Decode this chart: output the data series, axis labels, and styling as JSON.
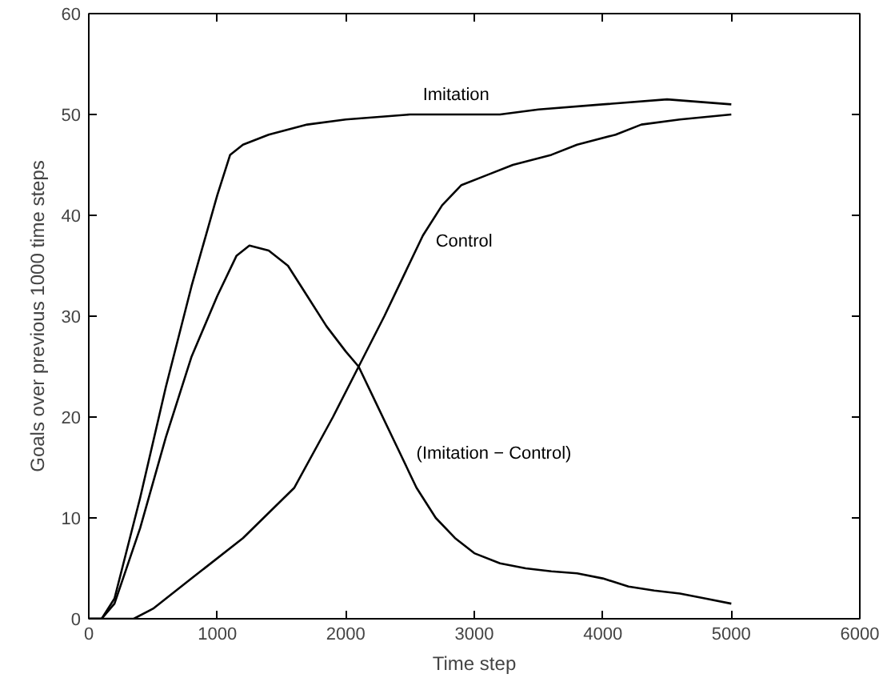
{
  "chart_data": {
    "type": "line",
    "xlabel": "Time step",
    "ylabel": "Goals over previous 1000 time steps",
    "xlim": [
      0,
      6000
    ],
    "ylim": [
      0,
      60
    ],
    "xticks": [
      0,
      1000,
      2000,
      3000,
      4000,
      5000,
      6000
    ],
    "yticks": [
      0,
      10,
      20,
      30,
      40,
      50,
      60
    ],
    "grid": false,
    "marker": "none",
    "line_style": "solid",
    "series": [
      {
        "name": "Imitation",
        "color": "#000000",
        "x": [
          0,
          100,
          200,
          400,
          600,
          800,
          1000,
          1100,
          1200,
          1400,
          1700,
          2000,
          2500,
          3000,
          3200,
          3500,
          4000,
          4500,
          5000
        ],
        "values": [
          0,
          0,
          2,
          12,
          23,
          33,
          42,
          46,
          47,
          48,
          49,
          49.5,
          50,
          50,
          50,
          50.5,
          51,
          51.5,
          51
        ]
      },
      {
        "name": "Control",
        "color": "#000000",
        "x": [
          0,
          350,
          500,
          800,
          1200,
          1600,
          1900,
          2100,
          2300,
          2450,
          2600,
          2750,
          2900,
          3100,
          3300,
          3600,
          3800,
          4100,
          4300,
          4600,
          5000
        ],
        "values": [
          0,
          0,
          1,
          4,
          8,
          13,
          20,
          25,
          30,
          34,
          38,
          41,
          43,
          44,
          45,
          46,
          47,
          48,
          49,
          49.5,
          50
        ]
      },
      {
        "name": "(Imitation − Control)",
        "color": "#000000",
        "x": [
          0,
          100,
          200,
          400,
          600,
          800,
          1000,
          1150,
          1250,
          1400,
          1550,
          1700,
          1850,
          2000,
          2100,
          2250,
          2400,
          2550,
          2700,
          2850,
          3000,
          3200,
          3400,
          3600,
          3800,
          4000,
          4200,
          4400,
          4600,
          4800,
          5000
        ],
        "values": [
          0,
          0,
          1.5,
          9,
          18,
          26,
          32,
          36,
          37,
          36.5,
          35,
          32,
          29,
          26.5,
          25,
          21,
          17,
          13,
          10,
          8,
          6.5,
          5.5,
          5,
          4.7,
          4.5,
          4,
          3.2,
          2.8,
          2.5,
          2,
          1.5
        ]
      }
    ]
  }
}
